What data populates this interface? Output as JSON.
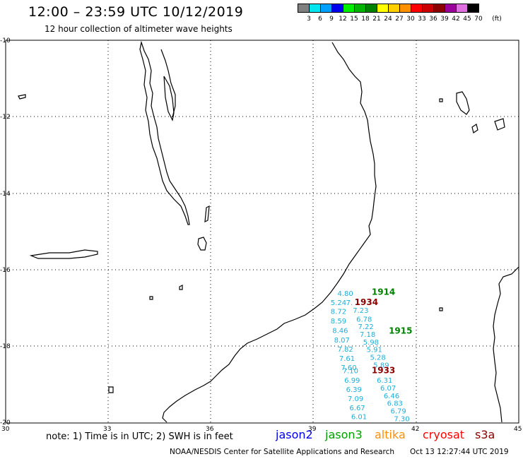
{
  "header": {
    "title": "12:00 – 23:59 UTC 10/12/2019",
    "subtitle": "12 hour collection of altimeter wave heights"
  },
  "legend": {
    "unit": "(ft)",
    "items": [
      {
        "label": "3",
        "color": "#808080"
      },
      {
        "label": "6",
        "color": "#00e5ee"
      },
      {
        "label": "9",
        "color": "#00a0ff"
      },
      {
        "label": "12",
        "color": "#0000ee"
      },
      {
        "label": "15",
        "color": "#00ee00"
      },
      {
        "label": "18",
        "color": "#00b400"
      },
      {
        "label": "21",
        "color": "#008200"
      },
      {
        "label": "24",
        "color": "#ffff00"
      },
      {
        "label": "27",
        "color": "#ffd000"
      },
      {
        "label": "30",
        "color": "#ff9000"
      },
      {
        "label": "33",
        "color": "#ff0000"
      },
      {
        "label": "36",
        "color": "#cc0000"
      },
      {
        "label": "39",
        "color": "#8b0000"
      },
      {
        "label": "42",
        "color": "#9a009a"
      },
      {
        "label": "45",
        "color": "#e070e0"
      },
      {
        "label": "70",
        "color": "#000000"
      }
    ]
  },
  "axes": {
    "lon_ticks": [
      "30",
      "33",
      "36",
      "39",
      "42",
      "45"
    ],
    "lat_ticks": [
      "-10",
      "-12",
      "-14",
      "-16",
      "-18",
      "-20"
    ]
  },
  "pass_times": [
    {
      "text": "1914",
      "lon": 40.7,
      "lat": -16.65,
      "color": "#008200"
    },
    {
      "text": "1934",
      "lon": 40.2,
      "lat": -16.92,
      "color": "#8b0000"
    },
    {
      "text": "1915",
      "lon": 41.2,
      "lat": -17.67,
      "color": "#008200"
    },
    {
      "text": "1933",
      "lon": 40.7,
      "lat": -18.7,
      "color": "#8b0000"
    }
  ],
  "wave_heights": [
    {
      "text": "4.80",
      "lon": 39.7,
      "lat": -16.68
    },
    {
      "text": "5.24",
      "lon": 39.5,
      "lat": -16.92
    },
    {
      "text": "8.72",
      "lon": 39.5,
      "lat": -17.15
    },
    {
      "text": "8.59",
      "lon": 39.5,
      "lat": -17.4
    },
    {
      "text": "8.46",
      "lon": 39.55,
      "lat": -17.65
    },
    {
      "text": "8.07",
      "lon": 39.6,
      "lat": -17.9
    },
    {
      "text": "7.82",
      "lon": 39.7,
      "lat": -18.14
    },
    {
      "text": "7.61",
      "lon": 39.75,
      "lat": -18.38
    },
    {
      "text": "7.60",
      "lon": 39.8,
      "lat": -18.62
    },
    {
      "text": "7.10",
      "lon": 39.85,
      "lat": -18.7
    },
    {
      "text": "6.99",
      "lon": 39.9,
      "lat": -18.95
    },
    {
      "text": "6.39",
      "lon": 39.95,
      "lat": -19.19
    },
    {
      "text": "7.09",
      "lon": 40.0,
      "lat": -19.43
    },
    {
      "text": "6.67",
      "lon": 40.05,
      "lat": -19.67
    },
    {
      "text": "6.01",
      "lon": 40.1,
      "lat": -19.9
    },
    {
      "text": "7.",
      "lon": 39.95,
      "lat": -16.92
    },
    {
      "text": "7.23",
      "lon": 40.15,
      "lat": -17.12
    },
    {
      "text": "6.78",
      "lon": 40.25,
      "lat": -17.35
    },
    {
      "text": "7.22",
      "lon": 40.3,
      "lat": -17.55
    },
    {
      "text": "7.18",
      "lon": 40.35,
      "lat": -17.75
    },
    {
      "text": "5.98",
      "lon": 40.45,
      "lat": -17.95
    },
    {
      "text": "5.91",
      "lon": 40.55,
      "lat": -18.15
    },
    {
      "text": "5.28",
      "lon": 40.65,
      "lat": -18.35
    },
    {
      "text": "5.89",
      "lon": 40.75,
      "lat": -18.55
    },
    {
      "text": "6.31",
      "lon": 40.85,
      "lat": -18.95
    },
    {
      "text": "6.07",
      "lon": 40.95,
      "lat": -19.15
    },
    {
      "text": "6.46",
      "lon": 41.05,
      "lat": -19.35
    },
    {
      "text": "6.83",
      "lon": 41.15,
      "lat": -19.55
    },
    {
      "text": "6.79",
      "lon": 41.25,
      "lat": -19.75
    },
    {
      "text": "7.30",
      "lon": 41.35,
      "lat": -19.95
    }
  ],
  "wave_color": "#1ab0d8",
  "footer": {
    "note": "note:  1) Time is in UTC;  2) SWH is in feet",
    "satellites": [
      {
        "name": "jason2",
        "color": "#0000ee"
      },
      {
        "name": "jason3",
        "color": "#00a000"
      },
      {
        "name": "altika",
        "color": "#ff9000"
      },
      {
        "name": "cryosat",
        "color": "#ff0000"
      },
      {
        "name": "s3a",
        "color": "#8b0000"
      }
    ],
    "credit": "NOAA/NESDIS Center for Satellite Applications and Research",
    "timestamp": "Oct 13 12:27:44 UTC 2019"
  }
}
